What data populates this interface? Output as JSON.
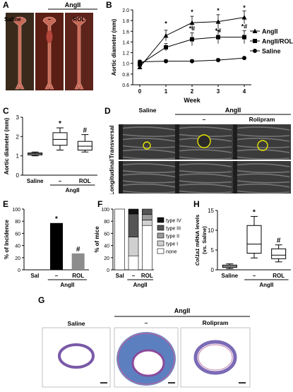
{
  "panels": {
    "A": {
      "label": "A",
      "group_label": "AngII",
      "columns": [
        "Saline",
        "–",
        "ROL"
      ],
      "photo_colors": [
        "#3a2a1c",
        "#5a1e14",
        "#5d241b"
      ],
      "tissue_color": "#c86a58"
    },
    "B": {
      "label": "B",
      "chart_data": {
        "type": "line",
        "xlabel": "Week",
        "ylabel": "Aortic diameter (mm)",
        "x": [
          0,
          1,
          2,
          3,
          4
        ],
        "ylim": [
          0.6,
          2.0
        ],
        "yticks": [
          "0.6",
          "0.8",
          "1.0",
          "1.2",
          "1.4",
          "1.6",
          "1.8",
          "2.0"
        ],
        "series": [
          {
            "name": "AngII",
            "marker": "triangle",
            "values": [
              0.93,
              1.52,
              1.76,
              1.78,
              1.86
            ],
            "err": [
              0.04,
              0.1,
              0.12,
              0.13,
              0.12
            ]
          },
          {
            "name": "AngII/ROL",
            "marker": "square",
            "values": [
              0.98,
              1.3,
              1.45,
              1.49,
              1.49
            ],
            "err": [
              0.04,
              0.07,
              0.12,
              0.12,
              0.12
            ]
          },
          {
            "name": "Saline",
            "marker": "circle",
            "values": [
              1.03,
              1.04,
              1.04,
              1.06,
              1.1
            ],
            "err": [
              0.03,
              0.03,
              0.03,
              0.03,
              0.02
            ]
          }
        ],
        "annotations": [
          "*",
          "*",
          "*#",
          "*",
          "*",
          "*#",
          "*",
          "*#"
        ]
      }
    },
    "C": {
      "label": "C",
      "chart_data": {
        "type": "box",
        "ylabel": "Aortic diameter (mm)",
        "ylim": [
          0,
          3
        ],
        "yticks": [
          "0",
          "1",
          "2",
          "3"
        ],
        "categories": [
          "Saline",
          "–",
          "ROL"
        ],
        "group_label": "AngII",
        "boxes": [
          {
            "min": 1.0,
            "q1": 1.05,
            "median": 1.1,
            "q3": 1.15,
            "max": 1.2,
            "sig": ""
          },
          {
            "min": 1.3,
            "q1": 1.55,
            "median": 1.85,
            "q3": 2.2,
            "max": 2.45,
            "sig": "*"
          },
          {
            "min": 1.2,
            "q1": 1.3,
            "median": 1.5,
            "q3": 1.75,
            "max": 2.1,
            "sig": "#"
          }
        ]
      }
    },
    "D": {
      "label": "D",
      "group_label": "AngII",
      "columns": [
        "Saline",
        "–",
        "Rolipram"
      ],
      "rows": [
        "Transversal",
        "Longitudinal"
      ]
    },
    "E": {
      "label": "E",
      "chart_data": {
        "type": "bar",
        "ylabel": "% of Incidence",
        "ylim": [
          0,
          100
        ],
        "yticks": [
          "0",
          "20",
          "40",
          "60",
          "80",
          "100"
        ],
        "categories": [
          "Sal",
          "–",
          "ROL"
        ],
        "group_label": "AngII",
        "values": [
          0,
          77,
          27
        ],
        "colors": [
          "#000000",
          "#000000",
          "#8c8c8c"
        ],
        "sig": [
          "",
          "*",
          "#"
        ]
      }
    },
    "F": {
      "label": "F",
      "chart_data": {
        "type": "bar",
        "stacked": true,
        "ylabel": "% of mice",
        "ylim": [
          0,
          100
        ],
        "yticks": [
          "0",
          "20",
          "40",
          "60",
          "80",
          "100"
        ],
        "categories": [
          "Sal",
          "–",
          "ROL"
        ],
        "group_label": "AngII",
        "series": [
          {
            "name": "none",
            "color": "#ffffff",
            "values": [
              100,
              23,
              73
            ]
          },
          {
            "name": "type I",
            "color": "#d0d0d0",
            "values": [
              0,
              31,
              9
            ]
          },
          {
            "name": "type II",
            "color": "#9a9a9a",
            "values": [
              0,
              0,
              9
            ]
          },
          {
            "name": "type III",
            "color": "#555555",
            "values": [
              0,
              38,
              9
            ]
          },
          {
            "name": "type IV",
            "color": "#111111",
            "values": [
              0,
              8,
              0
            ]
          }
        ],
        "legend_order": [
          "type IV",
          "type III",
          "type II",
          "type I",
          "none"
        ]
      }
    },
    "H": {
      "label": "H",
      "chart_data": {
        "type": "box",
        "ylabel_gene": "Col1a1",
        "ylabel_rest": " mRNA levels",
        "ylabel2": "(vs. Saline)",
        "ylim": [
          0,
          15
        ],
        "yticks": [
          "0",
          "5",
          "10",
          "15"
        ],
        "categories": [
          "Saline",
          "–",
          "ROL"
        ],
        "group_label": "AngII",
        "boxes": [
          {
            "min": 0.3,
            "q1": 0.6,
            "median": 0.9,
            "q3": 1.2,
            "max": 1.5,
            "sig": ""
          },
          {
            "min": 3.0,
            "q1": 4.2,
            "median": 6.5,
            "q3": 11.2,
            "max": 13.5,
            "sig": "*"
          },
          {
            "min": 2.0,
            "q1": 2.8,
            "median": 3.7,
            "q3": 5.3,
            "max": 6.3,
            "sig": "#"
          }
        ]
      }
    },
    "G": {
      "label": "G",
      "group_label": "AngII",
      "columns": [
        "Saline",
        "–",
        "Rolipram"
      ]
    }
  }
}
